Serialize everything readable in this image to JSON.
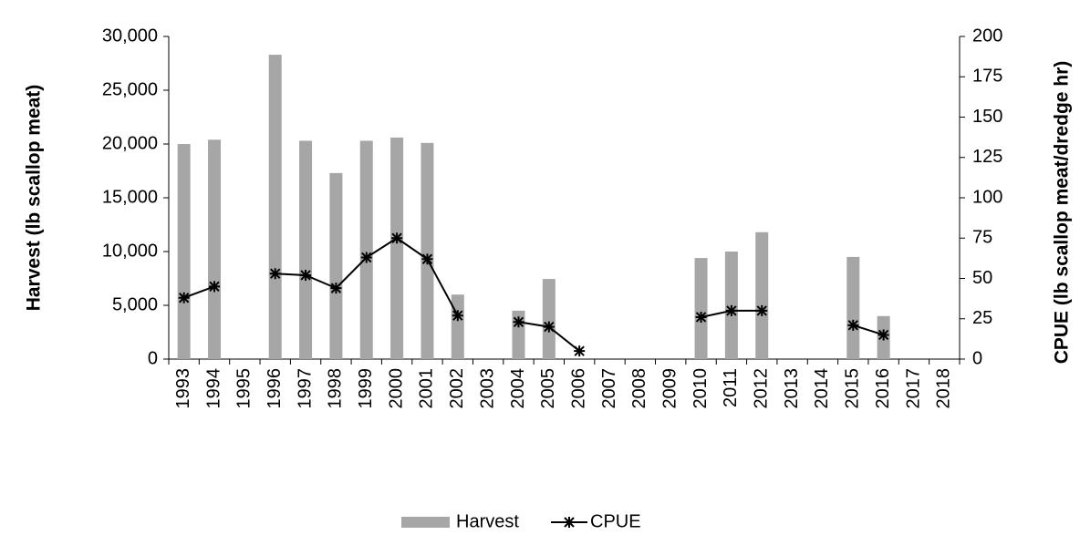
{
  "chart_data": {
    "type": "bar",
    "y_label": "Harvest (lb scallop meat)",
    "y2_label": "CPUE (lb scallop meat/dredge hr)",
    "categories": [
      "1993",
      "1994",
      "1995",
      "1996",
      "1997",
      "1998",
      "1999",
      "2000",
      "2001",
      "2002",
      "2003",
      "2004",
      "2005",
      "2006",
      "2007",
      "2008",
      "2009",
      "2010",
      "2011",
      "2012",
      "2013",
      "2014",
      "2015",
      "2016",
      "2017",
      "2018"
    ],
    "series": [
      {
        "name": "Harvest",
        "type": "bar",
        "color": "#a6a6a6",
        "values": [
          20000,
          20400,
          null,
          28300,
          20300,
          17300,
          20300,
          20600,
          20100,
          6000,
          null,
          4500,
          7450,
          null,
          null,
          null,
          null,
          9400,
          10000,
          11800,
          null,
          null,
          9500,
          4000,
          null,
          null
        ]
      },
      {
        "name": "CPUE",
        "type": "line",
        "color": "#000000",
        "axis": "y2",
        "values": [
          38,
          45,
          null,
          53,
          52,
          44,
          63,
          75,
          62,
          27,
          null,
          23,
          20,
          5,
          null,
          null,
          null,
          26,
          30,
          30,
          null,
          null,
          21,
          15,
          null,
          null
        ]
      }
    ],
    "ylim": [
      0,
      30000
    ],
    "yticks": [
      0,
      {
        "value": 5000,
        "label": "5,000"
      },
      {
        "value": 10000,
        "label": "10,000"
      },
      {
        "value": 15000,
        "label": "15,000"
      },
      {
        "value": 20000,
        "label": "20,000"
      },
      {
        "value": 25000,
        "label": "25,000"
      },
      {
        "value": 30000,
        "label": "30,000"
      }
    ],
    "y2lim": [
      0,
      200
    ],
    "y2ticks": [
      0,
      25,
      50,
      75,
      100,
      125,
      150,
      175,
      200
    ],
    "legend": "bottom",
    "grid": false
  }
}
